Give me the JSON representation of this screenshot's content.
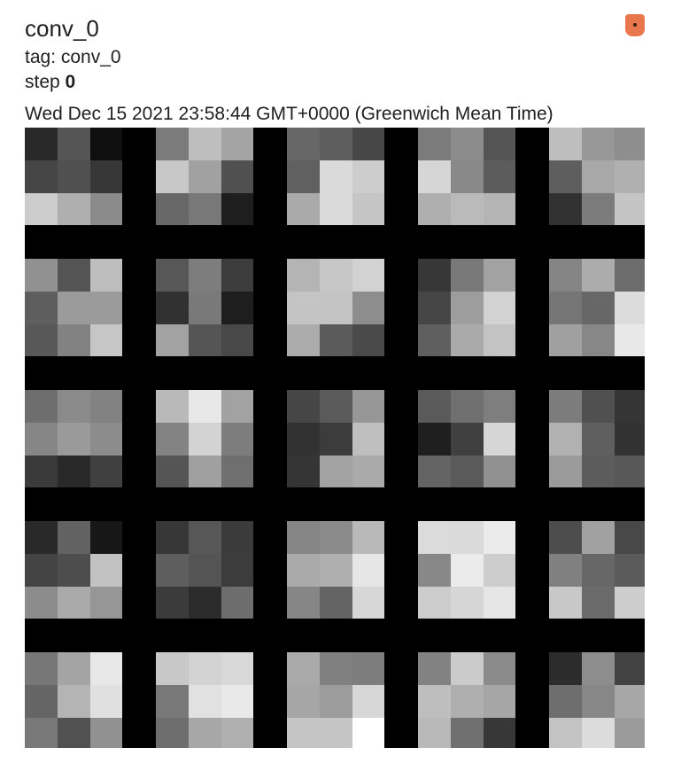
{
  "card": {
    "title": "conv_0",
    "tag_label": "tag: conv_0",
    "step_label": "step",
    "step_value": "0",
    "timestamp": "Wed Dec 15 2021 23:58:44 GMT+0000 (Greenwich Mean Time)",
    "pin_icon": "pin-icon",
    "pin_color": "#e8774d"
  },
  "image": {
    "grid_rows": 5,
    "grid_cols": 5,
    "kernel_size": 3,
    "background": "#000000",
    "kernels": [
      [
        [
          41,
          85,
          15
        ],
        [
          70,
          80,
          55
        ],
        [
          204,
          175,
          139
        ]
      ],
      [
        [
          123,
          190,
          164
        ],
        [
          200,
          161,
          80
        ],
        [
          104,
          120,
          30
        ]
      ],
      [
        [
          103,
          94,
          71
        ],
        [
          96,
          218,
          205
        ],
        [
          170,
          218,
          197
        ]
      ],
      [
        [
          123,
          140,
          84
        ],
        [
          214,
          137,
          92
        ],
        [
          175,
          186,
          180
        ]
      ],
      [
        [
          190,
          152,
          142
        ],
        [
          94,
          168,
          176
        ],
        [
          50,
          124,
          196
        ]
      ],
      [
        [
          145,
          84,
          190
        ],
        [
          94,
          155,
          155
        ],
        [
          88,
          130,
          198
        ]
      ],
      [
        [
          87,
          125,
          60
        ],
        [
          49,
          121,
          30
        ],
        [
          162,
          85,
          72
        ]
      ],
      [
        [
          180,
          199,
          210
        ],
        [
          196,
          196,
          141
        ],
        [
          172,
          91,
          74
        ]
      ],
      [
        [
          55,
          120,
          162
        ],
        [
          70,
          158,
          210
        ],
        [
          95,
          170,
          195
        ]
      ],
      [
        [
          132,
          172,
          108
        ],
        [
          117,
          103,
          220
        ],
        [
          160,
          135,
          232
        ]
      ],
      [
        [
          110,
          138,
          130
        ],
        [
          134,
          154,
          140
        ],
        [
          58,
          41,
          64
        ]
      ],
      [
        [
          185,
          232,
          162
        ],
        [
          131,
          211,
          125
        ],
        [
          85,
          160,
          111
        ]
      ],
      [
        [
          70,
          90,
          151
        ],
        [
          50,
          60,
          191
        ],
        [
          53,
          162,
          170
        ]
      ],
      [
        [
          90,
          111,
          126
        ],
        [
          30,
          64,
          214
        ],
        [
          99,
          90,
          144
        ]
      ],
      [
        [
          124,
          80,
          53
        ],
        [
          177,
          95,
          50
        ],
        [
          155,
          92,
          88
        ]
      ],
      [
        [
          41,
          98,
          23
        ],
        [
          68,
          77,
          194
        ],
        [
          140,
          170,
          150
        ]
      ],
      [
        [
          55,
          87,
          59
        ],
        [
          94,
          84,
          60
        ],
        [
          59,
          44,
          109
        ]
      ],
      [
        [
          134,
          139,
          185
        ],
        [
          170,
          175,
          230
        ],
        [
          134,
          100,
          215
        ]
      ],
      [
        [
          219,
          218,
          235
        ],
        [
          136,
          235,
          205
        ],
        [
          204,
          214,
          230
        ]
      ],
      [
        [
          77,
          161,
          72
        ],
        [
          128,
          103,
          91
        ],
        [
          200,
          107,
          205
        ]
      ],
      [
        [
          119,
          164,
          231
        ],
        [
          101,
          180,
          224
        ],
        [
          120,
          81,
          145
        ]
      ],
      [
        [
          200,
          211,
          216
        ],
        [
          120,
          225,
          233
        ],
        [
          110,
          167,
          176
        ]
      ],
      [
        [
          170,
          128,
          125
        ],
        [
          166,
          156,
          215
        ],
        [
          197,
          197,
          255
        ]
      ],
      [
        [
          130,
          203,
          138
        ],
        [
          190,
          174,
          166
        ],
        [
          185,
          112,
          55
        ]
      ],
      [
        [
          44,
          141,
          66
        ],
        [
          110,
          135,
          167
        ],
        [
          195,
          220,
          155
        ]
      ]
    ]
  }
}
